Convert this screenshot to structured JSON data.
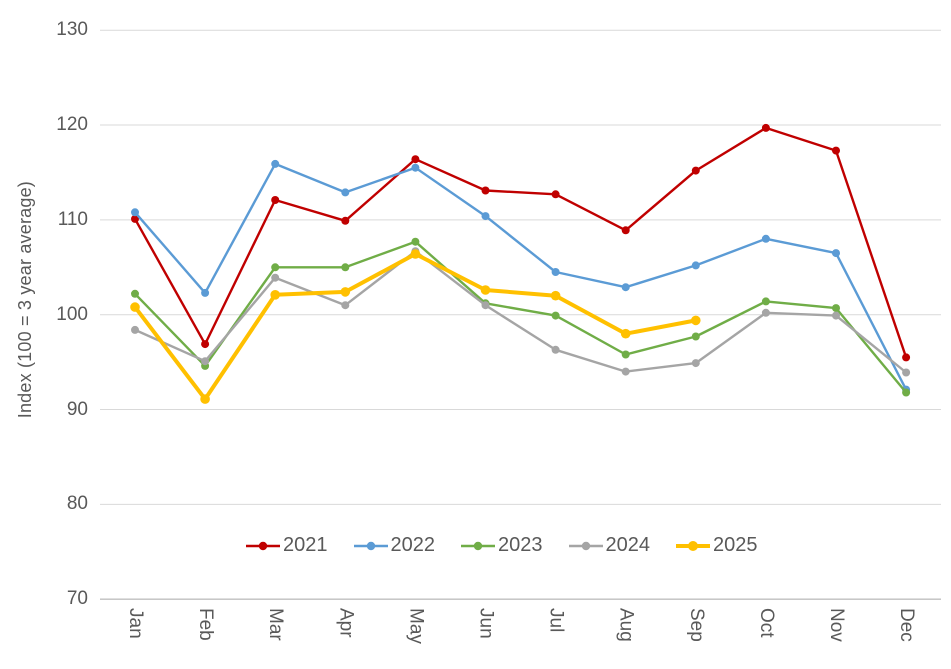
{
  "chart_data": {
    "type": "line",
    "ylabel": "Index (100 = 3 year average)",
    "categories": [
      "Jan",
      "Feb",
      "Mar",
      "Apr",
      "May",
      "Jun",
      "Jul",
      "Aug",
      "Sep",
      "Oct",
      "Nov",
      "Dec"
    ],
    "y_ticks": [
      130,
      120,
      110,
      100,
      90,
      80,
      70
    ],
    "ylim": [
      70,
      130
    ],
    "grid": "horizontal",
    "legend_position": "bottom-center",
    "series": [
      {
        "name": "2021",
        "color": "#C00000",
        "values": [
          110.1,
          96.9,
          112.1,
          109.9,
          116.4,
          113.1,
          112.7,
          108.9,
          115.2,
          119.7,
          117.3,
          95.5
        ]
      },
      {
        "name": "2022",
        "color": "#5B9BD5",
        "values": [
          110.8,
          102.3,
          115.9,
          112.9,
          115.5,
          110.4,
          104.5,
          102.9,
          105.2,
          108.0,
          106.5,
          92.1
        ]
      },
      {
        "name": "2023",
        "color": "#70AD47",
        "values": [
          102.2,
          94.6,
          105.0,
          105.0,
          107.7,
          101.2,
          99.9,
          95.8,
          97.7,
          101.4,
          100.7,
          91.8
        ]
      },
      {
        "name": "2024",
        "color": "#A5A5A5",
        "values": [
          98.4,
          95.1,
          103.9,
          101.0,
          106.7,
          101.0,
          96.3,
          94.0,
          94.9,
          100.2,
          99.9,
          93.9
        ]
      },
      {
        "name": "2025",
        "color": "#FFC000",
        "emphasis": true,
        "values": [
          100.8,
          91.1,
          102.1,
          102.4,
          106.4,
          102.6,
          102.0,
          98.0,
          99.4,
          null,
          null,
          null
        ]
      }
    ],
    "style_colors": {
      "text": "#595959",
      "gridline": "#D9D9D9",
      "axis_line": "#BFBFBF"
    }
  }
}
